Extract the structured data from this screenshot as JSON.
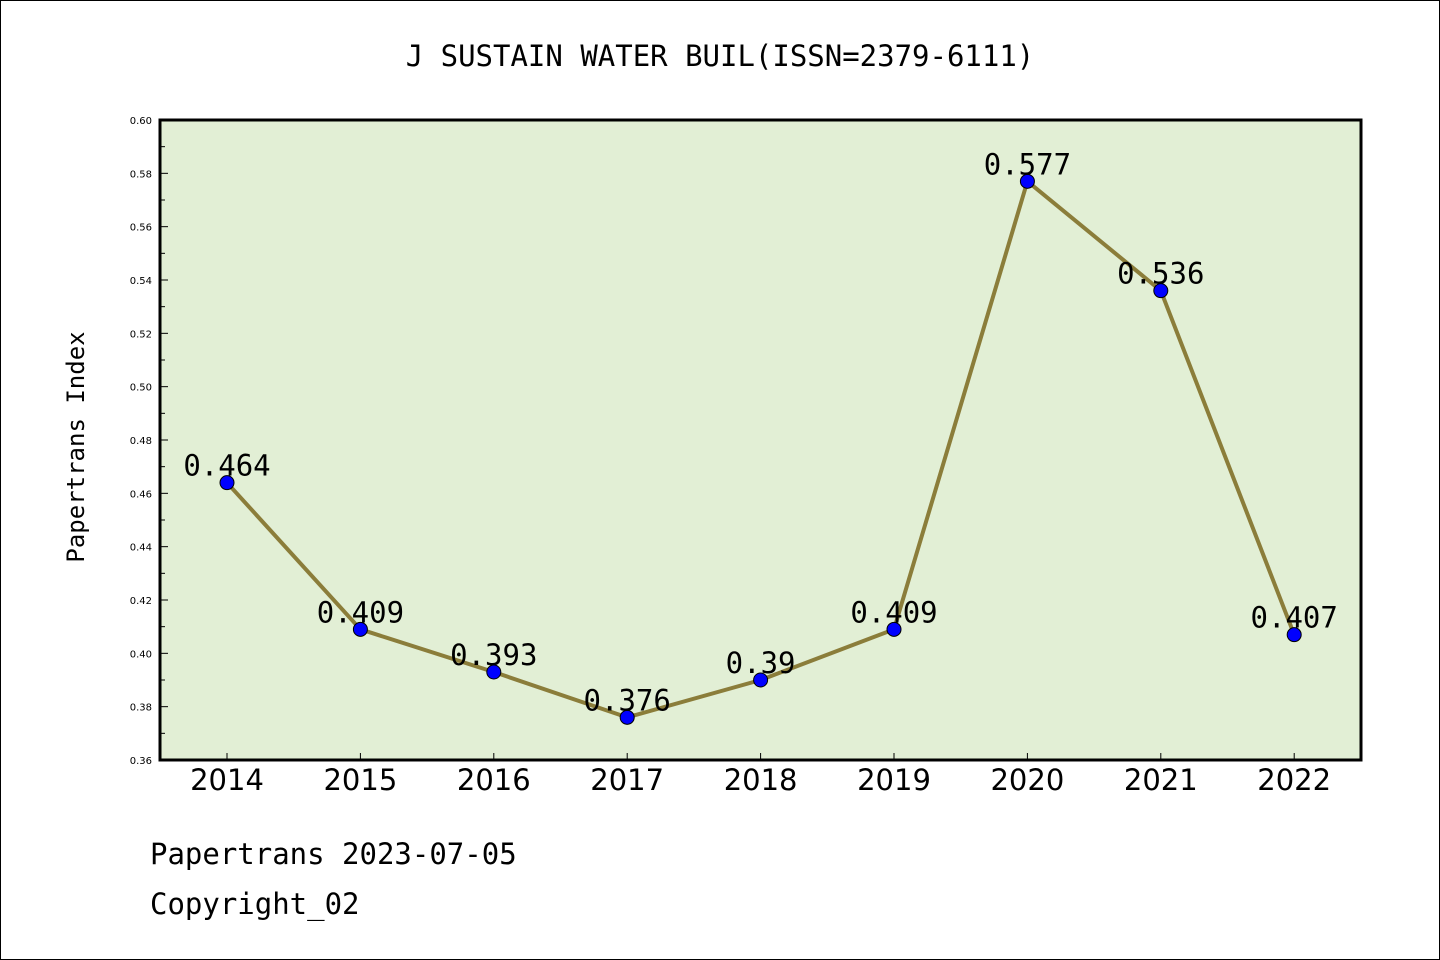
{
  "chart_data": {
    "type": "line",
    "title": "J SUSTAIN WATER BUIL(ISSN=2379-6111)",
    "xlabel": "",
    "ylabel": "Papertrans Index",
    "categories": [
      "2014",
      "2015",
      "2016",
      "2017",
      "2018",
      "2019",
      "2020",
      "2021",
      "2022"
    ],
    "series": [
      {
        "values": [
          0.464,
          0.409,
          0.393,
          0.376,
          0.39,
          0.409,
          0.577,
          0.536,
          0.407
        ],
        "labels": [
          "0.464",
          "0.409",
          "0.393",
          "0.376",
          "0.39",
          "0.409",
          "0.577",
          "0.536",
          "0.407"
        ]
      }
    ],
    "ylim": [
      0.36,
      0.6
    ],
    "yticks": [
      "0.36",
      "0.38",
      "0.40",
      "0.42",
      "0.44",
      "0.46",
      "0.48",
      "0.50",
      "0.52",
      "0.54",
      "0.56",
      "0.58",
      "0.60"
    ],
    "grid": false,
    "colors": {
      "plot_background": "#e2efd5",
      "line": "#8b7d3a",
      "marker": "#0000ff"
    }
  },
  "footer": {
    "source": "Papertrans 2023-07-05",
    "copyright": "Copyright_02"
  }
}
